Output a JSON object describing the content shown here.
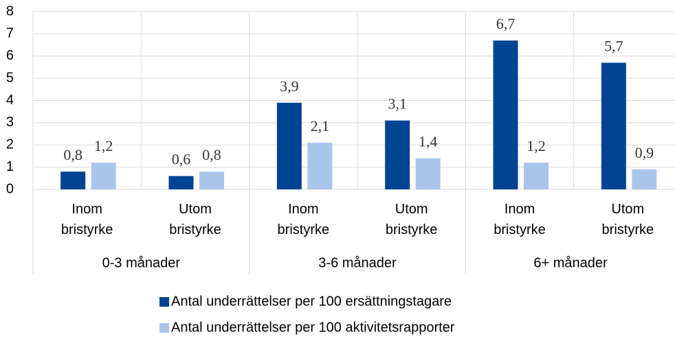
{
  "chart_data": {
    "type": "bar",
    "groups": [
      "0-3 månader",
      "3-6 månader",
      "6+ månader"
    ],
    "categories": [
      "Inom bristyrke",
      "Utom bristyrke",
      "Inom bristyrke",
      "Utom bristyrke",
      "Inom bristyrke",
      "Utom bristyrke"
    ],
    "series": [
      {
        "name": "Antal underrättelser per 100 ersättningstagare",
        "color": "#004494",
        "values": [
          0.8,
          0.6,
          3.9,
          3.1,
          6.7,
          5.7
        ],
        "value_labels": [
          "0,8",
          "0,6",
          "3,9",
          "3,1",
          "6,7",
          "5,7"
        ]
      },
      {
        "name": "Antal underrättelser per 100 aktivitetsrapporter",
        "color": "#a9c6ea",
        "values": [
          1.2,
          0.8,
          2.1,
          1.4,
          1.2,
          0.9
        ],
        "value_labels": [
          "1,2",
          "0,8",
          "2,1",
          "1,4",
          "1,2",
          "0,9"
        ]
      }
    ],
    "ylim": [
      0,
      8
    ],
    "yticks": [
      0,
      1,
      2,
      3,
      4,
      5,
      6,
      7,
      8
    ],
    "grid": true
  }
}
